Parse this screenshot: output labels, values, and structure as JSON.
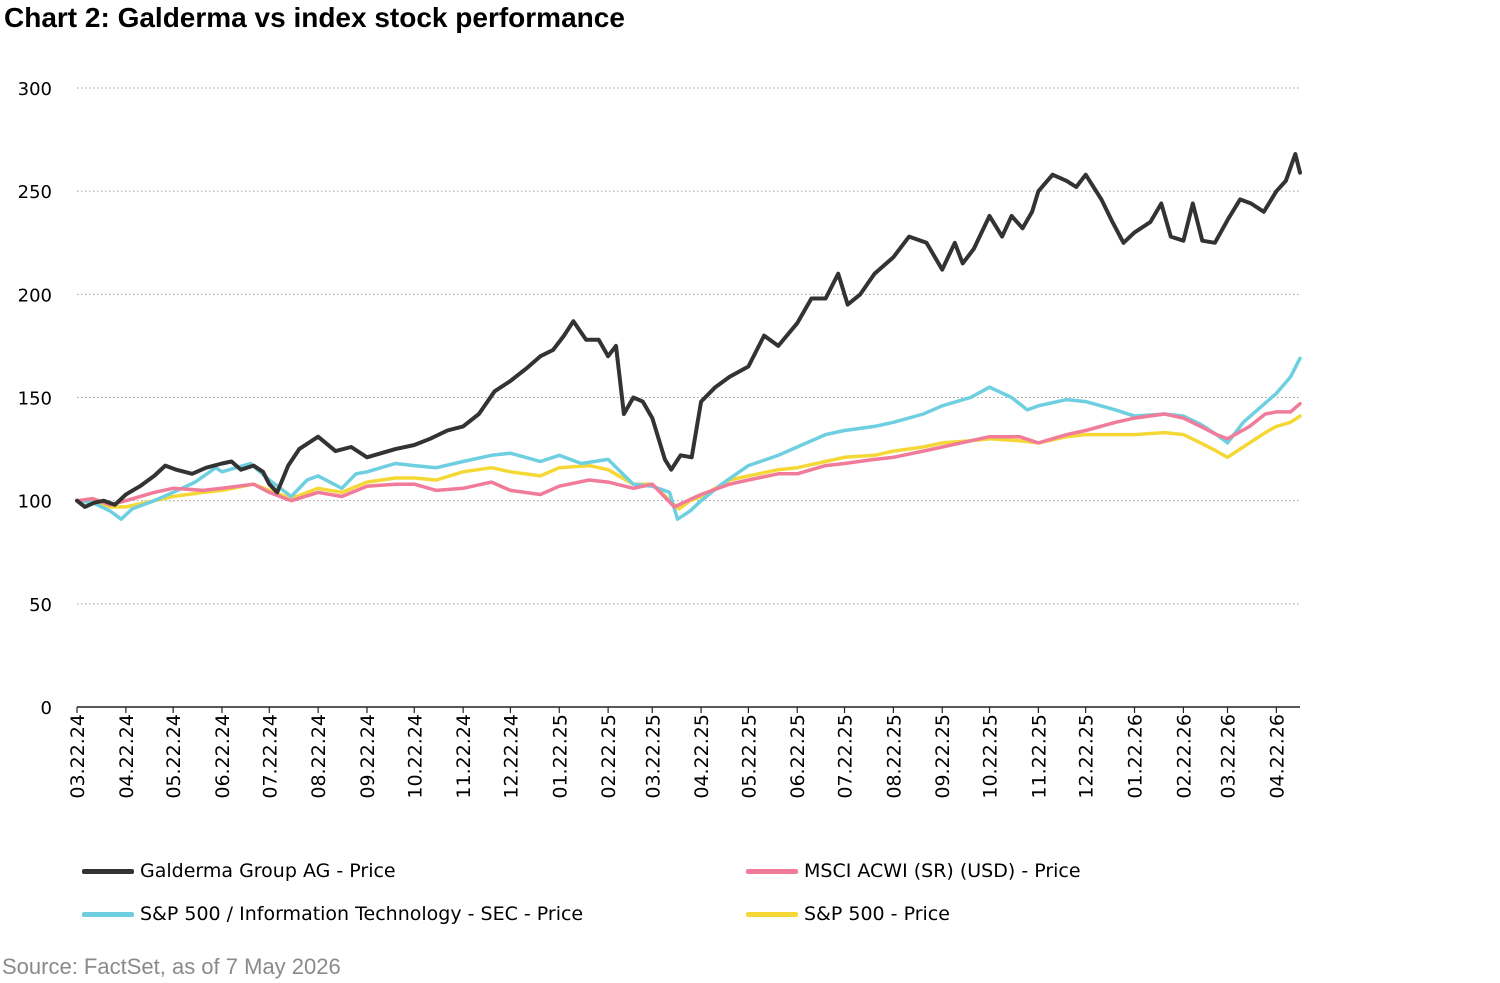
{
  "title": "Chart 2: Galderma vs index stock performance",
  "source": "Source: FactSet, as of 7 May 2026",
  "chart_data": {
    "type": "line",
    "ylim": [
      0,
      300
    ],
    "yticks": [
      0,
      50,
      100,
      150,
      200,
      250,
      300
    ],
    "xlim": [
      "2024-03-22",
      "2026-05-07"
    ],
    "xticks": [
      "03.22.24",
      "04.22.24",
      "05.22.24",
      "06.22.24",
      "07.22.24",
      "08.22.24",
      "09.22.24",
      "10.22.24",
      "11.22.24",
      "12.22.24",
      "01.22.25",
      "02.22.25",
      "03.22.25",
      "04.22.25",
      "05.22.25",
      "06.22.25",
      "07.22.25",
      "08.22.25",
      "09.22.25",
      "10.22.25",
      "11.22.25",
      "12.22.25",
      "01.22.26",
      "02.22.26",
      "03.22.26",
      "04.22.26"
    ],
    "grid": true,
    "legend_position": "bottom",
    "series": [
      {
        "name": "Galderma Group AG - Price",
        "color": "#333333",
        "points": [
          [
            "2024-03-22",
            100
          ],
          [
            "2024-03-27",
            97
          ],
          [
            "2024-04-02",
            99
          ],
          [
            "2024-04-08",
            100
          ],
          [
            "2024-04-15",
            98
          ],
          [
            "2024-04-22",
            103
          ],
          [
            "2024-05-01",
            107
          ],
          [
            "2024-05-10",
            112
          ],
          [
            "2024-05-17",
            117
          ],
          [
            "2024-05-24",
            115
          ],
          [
            "2024-06-03",
            113
          ],
          [
            "2024-06-12",
            116
          ],
          [
            "2024-06-22",
            118
          ],
          [
            "2024-06-28",
            119
          ],
          [
            "2024-07-04",
            115
          ],
          [
            "2024-07-12",
            117
          ],
          [
            "2024-07-18",
            114
          ],
          [
            "2024-07-22",
            108
          ],
          [
            "2024-07-27",
            104
          ],
          [
            "2024-08-03",
            117
          ],
          [
            "2024-08-10",
            125
          ],
          [
            "2024-08-22",
            131
          ],
          [
            "2024-09-02",
            124
          ],
          [
            "2024-09-12",
            126
          ],
          [
            "2024-09-22",
            121
          ],
          [
            "2024-10-01",
            123
          ],
          [
            "2024-10-10",
            125
          ],
          [
            "2024-10-22",
            127
          ],
          [
            "2024-11-01",
            130
          ],
          [
            "2024-11-12",
            134
          ],
          [
            "2024-11-22",
            136
          ],
          [
            "2024-12-02",
            142
          ],
          [
            "2024-12-12",
            153
          ],
          [
            "2024-12-22",
            158
          ],
          [
            "2025-01-01",
            164
          ],
          [
            "2025-01-10",
            170
          ],
          [
            "2025-01-18",
            173
          ],
          [
            "2025-01-25",
            180
          ],
          [
            "2025-01-31",
            187
          ],
          [
            "2025-02-08",
            178
          ],
          [
            "2025-02-16",
            178
          ],
          [
            "2025-02-22",
            170
          ],
          [
            "2025-02-27",
            175
          ],
          [
            "2025-03-04",
            142
          ],
          [
            "2025-03-10",
            150
          ],
          [
            "2025-03-16",
            148
          ],
          [
            "2025-03-22",
            140
          ],
          [
            "2025-03-30",
            120
          ],
          [
            "2025-04-03",
            115
          ],
          [
            "2025-04-09",
            122
          ],
          [
            "2025-04-16",
            121
          ],
          [
            "2025-04-22",
            148
          ],
          [
            "2025-05-01",
            155
          ],
          [
            "2025-05-10",
            160
          ],
          [
            "2025-05-22",
            165
          ],
          [
            "2025-06-01",
            180
          ],
          [
            "2025-06-10",
            175
          ],
          [
            "2025-06-22",
            186
          ],
          [
            "2025-07-01",
            198
          ],
          [
            "2025-07-10",
            198
          ],
          [
            "2025-07-18",
            210
          ],
          [
            "2025-07-24",
            195
          ],
          [
            "2025-08-01",
            200
          ],
          [
            "2025-08-10",
            210
          ],
          [
            "2025-08-22",
            218
          ],
          [
            "2025-09-01",
            228
          ],
          [
            "2025-09-12",
            225
          ],
          [
            "2025-09-22",
            212
          ],
          [
            "2025-09-30",
            225
          ],
          [
            "2025-10-05",
            215
          ],
          [
            "2025-10-12",
            222
          ],
          [
            "2025-10-22",
            238
          ],
          [
            "2025-10-30",
            228
          ],
          [
            "2025-11-05",
            238
          ],
          [
            "2025-11-12",
            232
          ],
          [
            "2025-11-18",
            240
          ],
          [
            "2025-11-22",
            250
          ],
          [
            "2025-12-01",
            258
          ],
          [
            "2025-12-10",
            255
          ],
          [
            "2025-12-16",
            252
          ],
          [
            "2025-12-22",
            258
          ],
          [
            "2026-01-01",
            246
          ],
          [
            "2026-01-08",
            235
          ],
          [
            "2026-01-15",
            225
          ],
          [
            "2026-01-22",
            230
          ],
          [
            "2026-02-01",
            235
          ],
          [
            "2026-02-08",
            244
          ],
          [
            "2026-02-14",
            228
          ],
          [
            "2026-02-22",
            226
          ],
          [
            "2026-02-28",
            244
          ],
          [
            "2026-03-06",
            226
          ],
          [
            "2026-03-14",
            225
          ],
          [
            "2026-03-22",
            236
          ],
          [
            "2026-03-30",
            246
          ],
          [
            "2026-04-06",
            244
          ],
          [
            "2026-04-14",
            240
          ],
          [
            "2026-04-22",
            250
          ],
          [
            "2026-04-28",
            255
          ],
          [
            "2026-05-04",
            268
          ],
          [
            "2026-05-07",
            259
          ]
        ]
      },
      {
        "name": "MSCI ACWI (SR) (USD) - Price",
        "color": "#f07c9a",
        "points": [
          [
            "2024-03-22",
            100
          ],
          [
            "2024-04-01",
            101
          ],
          [
            "2024-04-12",
            98
          ],
          [
            "2024-04-22",
            100
          ],
          [
            "2024-05-10",
            104
          ],
          [
            "2024-05-22",
            106
          ],
          [
            "2024-06-10",
            105
          ],
          [
            "2024-06-22",
            106
          ],
          [
            "2024-07-12",
            108
          ],
          [
            "2024-07-22",
            104
          ],
          [
            "2024-08-05",
            100
          ],
          [
            "2024-08-22",
            104
          ],
          [
            "2024-09-06",
            102
          ],
          [
            "2024-09-22",
            107
          ],
          [
            "2024-10-10",
            108
          ],
          [
            "2024-10-22",
            108
          ],
          [
            "2024-11-05",
            105
          ],
          [
            "2024-11-22",
            106
          ],
          [
            "2024-12-10",
            109
          ],
          [
            "2024-12-22",
            105
          ],
          [
            "2025-01-10",
            103
          ],
          [
            "2025-01-22",
            107
          ],
          [
            "2025-02-10",
            110
          ],
          [
            "2025-02-22",
            109
          ],
          [
            "2025-03-10",
            106
          ],
          [
            "2025-03-22",
            108
          ],
          [
            "2025-04-05",
            97
          ],
          [
            "2025-04-22",
            103
          ],
          [
            "2025-05-10",
            108
          ],
          [
            "2025-05-22",
            110
          ],
          [
            "2025-06-10",
            113
          ],
          [
            "2025-06-22",
            113
          ],
          [
            "2025-07-10",
            117
          ],
          [
            "2025-07-22",
            118
          ],
          [
            "2025-08-10",
            120
          ],
          [
            "2025-08-22",
            121
          ],
          [
            "2025-09-10",
            124
          ],
          [
            "2025-09-22",
            126
          ],
          [
            "2025-10-10",
            129
          ],
          [
            "2025-10-22",
            131
          ],
          [
            "2025-11-10",
            131
          ],
          [
            "2025-11-22",
            128
          ],
          [
            "2025-12-10",
            132
          ],
          [
            "2025-12-22",
            134
          ],
          [
            "2026-01-10",
            138
          ],
          [
            "2026-01-22",
            140
          ],
          [
            "2026-02-10",
            142
          ],
          [
            "2026-02-22",
            140
          ],
          [
            "2026-03-05",
            136
          ],
          [
            "2026-03-15",
            132
          ],
          [
            "2026-03-22",
            130
          ],
          [
            "2026-04-05",
            136
          ],
          [
            "2026-04-15",
            142
          ],
          [
            "2026-04-22",
            143
          ],
          [
            "2026-05-01",
            143
          ],
          [
            "2026-05-07",
            147
          ]
        ]
      },
      {
        "name": "S&P 500 / Information Technology - SEC - Price",
        "color": "#6ecfe0",
        "points": [
          [
            "2024-03-22",
            100
          ],
          [
            "2024-04-01",
            99
          ],
          [
            "2024-04-12",
            95
          ],
          [
            "2024-04-19",
            91
          ],
          [
            "2024-04-26",
            96
          ],
          [
            "2024-05-10",
            100
          ],
          [
            "2024-05-22",
            104
          ],
          [
            "2024-06-05",
            109
          ],
          [
            "2024-06-18",
            116
          ],
          [
            "2024-06-22",
            114
          ],
          [
            "2024-07-10",
            118
          ],
          [
            "2024-07-22",
            110
          ],
          [
            "2024-08-05",
            102
          ],
          [
            "2024-08-15",
            110
          ],
          [
            "2024-08-22",
            112
          ],
          [
            "2024-09-06",
            106
          ],
          [
            "2024-09-15",
            113
          ],
          [
            "2024-09-22",
            114
          ],
          [
            "2024-10-10",
            118
          ],
          [
            "2024-10-22",
            117
          ],
          [
            "2024-11-05",
            116
          ],
          [
            "2024-11-22",
            119
          ],
          [
            "2024-12-10",
            122
          ],
          [
            "2024-12-22",
            123
          ],
          [
            "2025-01-10",
            119
          ],
          [
            "2025-01-22",
            122
          ],
          [
            "2025-02-05",
            118
          ],
          [
            "2025-02-22",
            120
          ],
          [
            "2025-03-10",
            108
          ],
          [
            "2025-03-22",
            107
          ],
          [
            "2025-04-02",
            104
          ],
          [
            "2025-04-07",
            91
          ],
          [
            "2025-04-15",
            95
          ],
          [
            "2025-04-22",
            100
          ],
          [
            "2025-05-05",
            108
          ],
          [
            "2025-05-22",
            117
          ],
          [
            "2025-06-10",
            122
          ],
          [
            "2025-06-22",
            126
          ],
          [
            "2025-07-10",
            132
          ],
          [
            "2025-07-22",
            134
          ],
          [
            "2025-08-10",
            136
          ],
          [
            "2025-08-22",
            138
          ],
          [
            "2025-09-10",
            142
          ],
          [
            "2025-09-22",
            146
          ],
          [
            "2025-10-10",
            150
          ],
          [
            "2025-10-22",
            155
          ],
          [
            "2025-11-05",
            150
          ],
          [
            "2025-11-15",
            144
          ],
          [
            "2025-11-22",
            146
          ],
          [
            "2025-12-10",
            149
          ],
          [
            "2025-12-22",
            148
          ],
          [
            "2026-01-10",
            144
          ],
          [
            "2026-01-22",
            141
          ],
          [
            "2026-02-10",
            142
          ],
          [
            "2026-02-22",
            141
          ],
          [
            "2026-03-05",
            137
          ],
          [
            "2026-03-15",
            132
          ],
          [
            "2026-03-22",
            128
          ],
          [
            "2026-04-01",
            138
          ],
          [
            "2026-04-10",
            144
          ],
          [
            "2026-04-22",
            152
          ],
          [
            "2026-05-01",
            160
          ],
          [
            "2026-05-07",
            169
          ]
        ]
      },
      {
        "name": "S&P 500 - Price",
        "color": "#f5d836",
        "points": [
          [
            "2024-03-22",
            100
          ],
          [
            "2024-04-01",
            100
          ],
          [
            "2024-04-12",
            97
          ],
          [
            "2024-04-22",
            97
          ],
          [
            "2024-05-10",
            100
          ],
          [
            "2024-05-22",
            102
          ],
          [
            "2024-06-10",
            104
          ],
          [
            "2024-06-22",
            105
          ],
          [
            "2024-07-12",
            108
          ],
          [
            "2024-07-22",
            105
          ],
          [
            "2024-08-05",
            101
          ],
          [
            "2024-08-22",
            106
          ],
          [
            "2024-09-06",
            104
          ],
          [
            "2024-09-22",
            109
          ],
          [
            "2024-10-10",
            111
          ],
          [
            "2024-10-22",
            111
          ],
          [
            "2024-11-05",
            110
          ],
          [
            "2024-11-22",
            114
          ],
          [
            "2024-12-10",
            116
          ],
          [
            "2024-12-22",
            114
          ],
          [
            "2025-01-10",
            112
          ],
          [
            "2025-01-22",
            116
          ],
          [
            "2025-02-10",
            117
          ],
          [
            "2025-02-22",
            115
          ],
          [
            "2025-03-10",
            108
          ],
          [
            "2025-03-22",
            108
          ],
          [
            "2025-04-08",
            96
          ],
          [
            "2025-04-15",
            100
          ],
          [
            "2025-04-22",
            102
          ],
          [
            "2025-05-10",
            110
          ],
          [
            "2025-05-22",
            112
          ],
          [
            "2025-06-10",
            115
          ],
          [
            "2025-06-22",
            116
          ],
          [
            "2025-07-10",
            119
          ],
          [
            "2025-07-22",
            121
          ],
          [
            "2025-08-10",
            122
          ],
          [
            "2025-08-22",
            124
          ],
          [
            "2025-09-10",
            126
          ],
          [
            "2025-09-22",
            128
          ],
          [
            "2025-10-10",
            129
          ],
          [
            "2025-10-22",
            130
          ],
          [
            "2025-11-10",
            129
          ],
          [
            "2025-11-22",
            128
          ],
          [
            "2025-12-10",
            131
          ],
          [
            "2025-12-22",
            132
          ],
          [
            "2026-01-10",
            132
          ],
          [
            "2026-01-22",
            132
          ],
          [
            "2026-02-10",
            133
          ],
          [
            "2026-02-22",
            132
          ],
          [
            "2026-03-05",
            128
          ],
          [
            "2026-03-15",
            124
          ],
          [
            "2026-03-22",
            121
          ],
          [
            "2026-04-05",
            128
          ],
          [
            "2026-04-15",
            133
          ],
          [
            "2026-04-22",
            136
          ],
          [
            "2026-05-01",
            138
          ],
          [
            "2026-05-07",
            141
          ]
        ]
      }
    ]
  }
}
